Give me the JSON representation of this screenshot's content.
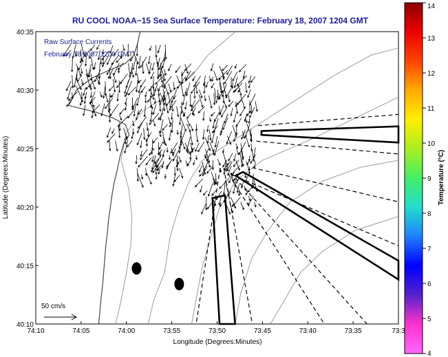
{
  "chart_data": {
    "type": "quiver",
    "title": "RU COOL  NOAA−15  Sea Surface Temperature:  February 18, 2007 1204 GMT",
    "annotations": {
      "line1": "Raw Surface Currents",
      "line2": "February 18 2007 1200 GMT",
      "scale_label": "50 cm/s"
    },
    "xlabel": "Longitude (Degrees:Minutes)",
    "ylabel": "Latitude (Degrees:Minutes)",
    "x_ticks": [
      "74:10",
      "74:05",
      "74:00",
      "73:55",
      "73:50",
      "73:45",
      "73:40",
      "73:35",
      "73:3"
    ],
    "y_ticks": [
      "40:10",
      "40:15",
      "40:20",
      "40:25",
      "40:30",
      "40:35"
    ],
    "xlim": [
      -74.1667,
      -73.5
    ],
    "ylim": [
      40.1667,
      40.5833
    ],
    "colorbar": {
      "label": "Temperature (°C)",
      "ticks": [
        "4",
        "5",
        "6",
        "7",
        "8",
        "9",
        "10",
        "11",
        "12",
        "13",
        "14"
      ],
      "range": [
        4,
        14
      ],
      "colors": [
        "#ff66ff",
        "#ff33cc",
        "#5522cc",
        "#0000ff",
        "#1f7fff",
        "#22ddcc",
        "#44ee66",
        "#aaee22",
        "#ffee00",
        "#ffaa00",
        "#ff4400",
        "#ee0000",
        "#8b0000"
      ]
    },
    "markers": [
      {
        "lon": -73.9814,
        "lat": 40.2458
      },
      {
        "lon": -73.9031,
        "lat": 40.2236
      }
    ],
    "channels": [
      [
        [
          -73.7517,
          40.4417
        ],
        [
          -73.5,
          40.4483
        ],
        [
          -73.5,
          40.4253
        ],
        [
          -73.7519,
          40.4362
        ]
      ],
      [
        [
          -73.7856,
          40.3833
        ],
        [
          -73.5,
          40.2569
        ],
        [
          -73.5,
          40.23
        ],
        [
          -73.7992,
          40.3781
        ]
      ],
      [
        [
          -73.8419,
          40.3461
        ],
        [
          -73.8189,
          40.35
        ],
        [
          -73.8003,
          40.1667
        ],
        [
          -73.8289,
          40.1667
        ]
      ]
    ],
    "wedges": [
      [
        [
          -73.7581,
          40.4494
        ],
        [
          -73.5,
          40.4653
        ]
      ],
      [
        [
          -73.7611,
          40.4272
        ],
        [
          -73.5,
          40.4089
        ]
      ],
      [
        [
          -73.7689,
          40.3894
        ],
        [
          -73.5,
          40.3408
        ]
      ],
      [
        [
          -73.8044,
          40.3789
        ],
        [
          -73.5,
          40.2781
        ]
      ],
      [
        [
          -73.8169,
          40.3892
        ],
        [
          -73.5578,
          40.1667
        ]
      ],
      [
        [
          -73.8197,
          40.3889
        ],
        [
          -73.6364,
          40.1667
        ]
      ],
      [
        [
          -73.8211,
          40.3889
        ],
        [
          -73.7686,
          40.1667
        ]
      ],
      [
        [
          -73.8278,
          40.3889
        ],
        [
          -73.8719,
          40.1667
        ]
      ]
    ],
    "coastline": [
      [
        -73.975,
        40.583
      ],
      [
        -73.98,
        40.565
      ],
      [
        -73.987,
        40.549
      ],
      [
        -74.002,
        40.538
      ],
      [
        -74.033,
        40.528
      ],
      [
        -74.064,
        40.517
      ],
      [
        -74.092,
        40.5
      ],
      [
        -74.106,
        40.478
      ],
      [
        -74.058,
        40.469
      ],
      [
        -74.024,
        40.46
      ],
      [
        -74.002,
        40.451
      ],
      [
        -73.995,
        40.436
      ],
      [
        -74.005,
        40.424
      ],
      [
        -74.012,
        40.405
      ],
      [
        -74.017,
        40.386
      ],
      [
        -74.023,
        40.367
      ],
      [
        -74.027,
        40.348
      ],
      [
        -74.03,
        40.331
      ],
      [
        -74.033,
        40.315
      ],
      [
        -74.035,
        40.297
      ],
      [
        -74.038,
        40.278
      ],
      [
        -74.04,
        40.259
      ],
      [
        -74.042,
        40.24
      ],
      [
        -74.044,
        40.221
      ],
      [
        -74.047,
        40.201
      ],
      [
        -74.049,
        40.183
      ],
      [
        -74.051,
        40.167
      ]
    ],
    "isobaths": [
      [
        [
          -74.02,
          40.167
        ],
        [
          -74.01,
          40.2
        ],
        [
          -74.0,
          40.24
        ],
        [
          -73.992,
          40.28
        ],
        [
          -73.99,
          40.32
        ],
        [
          -73.996,
          40.36
        ],
        [
          -74.01,
          40.4
        ],
        [
          -74.0,
          40.44
        ],
        [
          -73.97,
          40.47
        ],
        [
          -73.93,
          40.49
        ],
        [
          -73.88,
          40.52
        ],
        [
          -73.85,
          40.55
        ],
        [
          -73.8,
          40.583
        ]
      ],
      [
        [
          -73.96,
          40.167
        ],
        [
          -73.95,
          40.2
        ],
        [
          -73.93,
          40.24
        ],
        [
          -73.92,
          40.29
        ],
        [
          -73.905,
          40.33
        ],
        [
          -73.885,
          40.37
        ],
        [
          -73.86,
          40.4
        ],
        [
          -73.8,
          40.43
        ],
        [
          -73.72,
          40.47
        ],
        [
          -73.62,
          40.52
        ],
        [
          -73.55,
          40.55
        ],
        [
          -73.5,
          40.56
        ]
      ],
      [
        [
          -73.88,
          40.167
        ],
        [
          -73.87,
          40.21
        ],
        [
          -73.86,
          40.25
        ],
        [
          -73.845,
          40.29
        ],
        [
          -73.83,
          40.33
        ],
        [
          -73.8,
          40.37
        ],
        [
          -73.75,
          40.4
        ],
        [
          -73.66,
          40.43
        ],
        [
          -73.58,
          40.46
        ],
        [
          -73.5,
          40.49
        ]
      ],
      [
        [
          -73.8,
          40.167
        ],
        [
          -73.79,
          40.21
        ],
        [
          -73.77,
          40.26
        ],
        [
          -73.74,
          40.3
        ],
        [
          -73.7,
          40.34
        ],
        [
          -73.64,
          40.37
        ],
        [
          -73.57,
          40.39
        ],
        [
          -73.5,
          40.4
        ]
      ],
      [
        [
          -73.735,
          40.167
        ],
        [
          -73.71,
          40.2
        ],
        [
          -73.68,
          40.24
        ],
        [
          -73.64,
          40.27
        ],
        [
          -73.58,
          40.3
        ],
        [
          -73.5,
          40.32
        ]
      ]
    ],
    "vector_field": {
      "regions": [
        {
          "lon": [
            -74.1,
            -73.93
          ],
          "lat": [
            40.48,
            40.57
          ]
        },
        {
          "lon": [
            -74.03,
            -73.95
          ],
          "lat": [
            40.43,
            40.48
          ]
        },
        {
          "lon": [
            -73.95,
            -73.76
          ],
          "lat": [
            40.4,
            40.54
          ]
        },
        {
          "lon": [
            -73.98,
            -73.9
          ],
          "lat": [
            40.38,
            40.42
          ]
        },
        {
          "lon": [
            -73.86,
            -73.76
          ],
          "lat": [
            40.34,
            40.4
          ]
        }
      ],
      "dominant_direction": "south-southwest",
      "max_speed_cm_s": 60
    }
  }
}
